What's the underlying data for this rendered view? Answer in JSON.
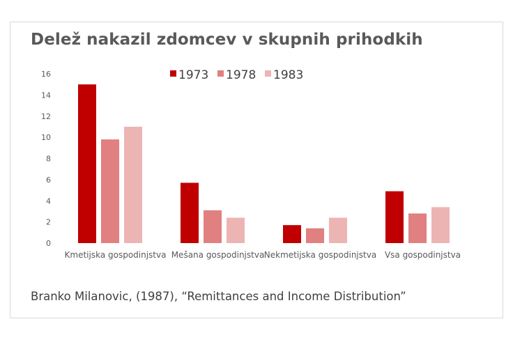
{
  "chart_data": {
    "type": "bar",
    "title": "Delež nakazil zdomcev v skupnih prihodkih",
    "categories": [
      "Kmetijska gospodinjstva",
      "Mešana gospodinjstva",
      "Nekmetijska gospodinjstva",
      "Vsa gospodinjstva"
    ],
    "series": [
      {
        "name": "1973",
        "color": "#c00000",
        "values": [
          15.0,
          5.7,
          1.7,
          4.9
        ]
      },
      {
        "name": "1978",
        "color": "#e08080",
        "values": [
          9.8,
          3.1,
          1.4,
          2.8
        ]
      },
      {
        "name": "1983",
        "color": "#edb4b4",
        "values": [
          11.0,
          2.4,
          2.4,
          3.4
        ]
      }
    ],
    "yticks": [
      "0",
      "2",
      "4",
      "6",
      "8",
      "10",
      "12",
      "14",
      "16"
    ],
    "ylim": [
      0,
      16
    ],
    "xlabel": "",
    "ylabel": "",
    "grid": false,
    "legend_position": "top"
  },
  "source": "Branko Milanovic, (1987), “Remittances and Income Distribution”"
}
